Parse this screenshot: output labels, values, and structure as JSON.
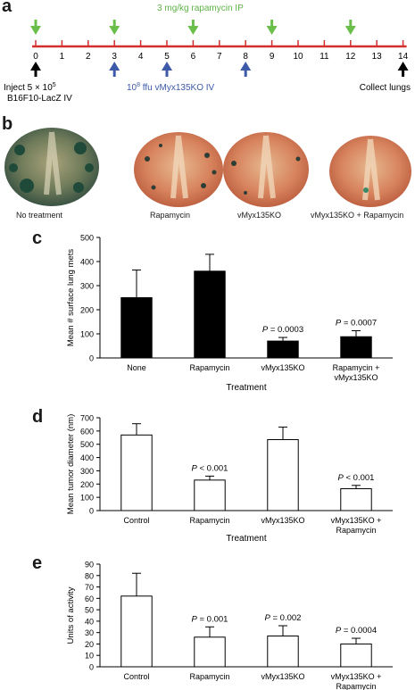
{
  "panel_a": {
    "label": "a",
    "rapamycin_label": "3 mg/kg rapamycin IP",
    "ticks": [
      "0",
      "1",
      "2",
      "3",
      "4",
      "5",
      "6",
      "7",
      "8",
      "9",
      "10",
      "11",
      "12",
      "13",
      "14"
    ],
    "green_arrow_days": [
      0,
      3,
      6,
      9,
      12
    ],
    "blue_arrow_days": [
      3,
      5,
      8
    ],
    "black_arrow_days": [
      0,
      14
    ],
    "inject_line1": "Inject 5 × 10",
    "inject_sup": "5",
    "inject_line2": "B16F10-LacZ IV",
    "virus_pre": "10",
    "virus_sup": "8",
    "virus_post": " ffu vMyx135KO IV",
    "collect_label": "Collect lungs",
    "colors": {
      "axis": "#d32f2f",
      "green": "#6abf4b",
      "blue": "#3d5aa8",
      "black": "#000000",
      "green_text": "#5fb246",
      "blue_text": "#3d5aa8"
    }
  },
  "panel_b": {
    "label": "b",
    "captions": [
      "No treatment",
      "Rapamycin",
      "vMyx135KO",
      "vMyx135KO + Rapamycin"
    ]
  },
  "chart_data": [
    {
      "panel": "c",
      "type": "bar",
      "categories": [
        "None",
        "Rapamycin",
        "vMyx135KO",
        "Rapamycin + vMyx135KO"
      ],
      "values": [
        250,
        360,
        70,
        88
      ],
      "errors": [
        115,
        70,
        15,
        25
      ],
      "annotations": [
        "",
        "",
        "P = 0.0003",
        "P = 0.0007"
      ],
      "xlabel": "Treatment",
      "ylabel": "Mean # surface lung mets",
      "ylim": [
        0,
        500
      ],
      "yticks": [
        0,
        100,
        200,
        300,
        400,
        500
      ],
      "bar_color": "#000000"
    },
    {
      "panel": "d",
      "type": "bar",
      "categories": [
        "Control",
        "Rapamycin",
        "vMyx135KO",
        "vMyx135KO + Rapamycin"
      ],
      "values": [
        570,
        230,
        535,
        165
      ],
      "errors": [
        85,
        30,
        95,
        25
      ],
      "annotations": [
        "",
        "P < 0.001",
        "",
        "P < 0.001"
      ],
      "xlabel": "Treatment",
      "ylabel": "Mean tumor diameter (nm)",
      "ylim": [
        0,
        700
      ],
      "yticks": [
        0,
        100,
        200,
        300,
        400,
        500,
        600,
        700
      ],
      "bar_color": "#ffffff"
    },
    {
      "panel": "e",
      "type": "bar",
      "categories": [
        "Control",
        "Rapamycin",
        "vMyx135KO",
        "vMyx135KO + Rapamycin"
      ],
      "values": [
        62,
        26,
        27,
        20
      ],
      "errors": [
        20,
        9,
        9,
        5
      ],
      "annotations": [
        "",
        "P = 0.001",
        "P = 0.002",
        "P = 0.0004"
      ],
      "xlabel": "",
      "ylabel": "Units of activity",
      "ylim": [
        0,
        90
      ],
      "yticks": [
        0,
        10,
        20,
        30,
        40,
        50,
        60,
        70,
        80,
        90
      ],
      "bar_color": "#ffffff"
    }
  ],
  "labels": {
    "c": "c",
    "d": "d",
    "e": "e"
  }
}
